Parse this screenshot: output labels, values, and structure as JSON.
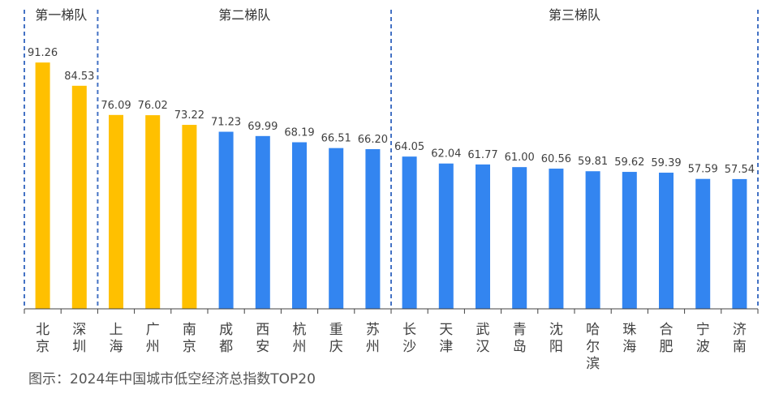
{
  "chart_data": {
    "type": "bar",
    "title": "",
    "caption": "图示：2024年中国城市低空经济总指数TOP20",
    "categories": [
      "北京",
      "深圳",
      "上海",
      "广州",
      "南京",
      "成都",
      "西安",
      "杭州",
      "重庆",
      "苏州",
      "长沙",
      "天津",
      "武汉",
      "青岛",
      "沈阳",
      "哈尔滨",
      "珠海",
      "合肥",
      "宁波",
      "济南"
    ],
    "values": [
      91.26,
      84.53,
      76.09,
      76.02,
      73.22,
      71.23,
      69.99,
      68.19,
      66.51,
      66.2,
      64.05,
      62.04,
      61.77,
      61.0,
      60.56,
      59.81,
      59.62,
      59.39,
      57.59,
      57.54
    ],
    "value_labels": [
      "91.26",
      "84.53",
      "76.09",
      "76.02",
      "73.22",
      "71.23",
      "69.99",
      "68.19",
      "66.51",
      "66.20",
      "64.05",
      "62.04",
      "61.77",
      "61.00",
      "60.56",
      "59.81",
      "59.62",
      "59.39",
      "57.59",
      "57.54"
    ],
    "highlight_count": 5,
    "colors": {
      "highlight": "#FFC000",
      "default": "#3385F0",
      "divider": "#4472C4",
      "axis": "#404040"
    },
    "tiers": [
      {
        "label": "第一梯队",
        "start": 0,
        "end": 2
      },
      {
        "label": "第二梯队",
        "start": 2,
        "end": 10
      },
      {
        "label": "第三梯队",
        "start": 10,
        "end": 20
      }
    ],
    "ylim": [
      20,
      107
    ],
    "grid": false,
    "xlabel": "",
    "ylabel": ""
  }
}
